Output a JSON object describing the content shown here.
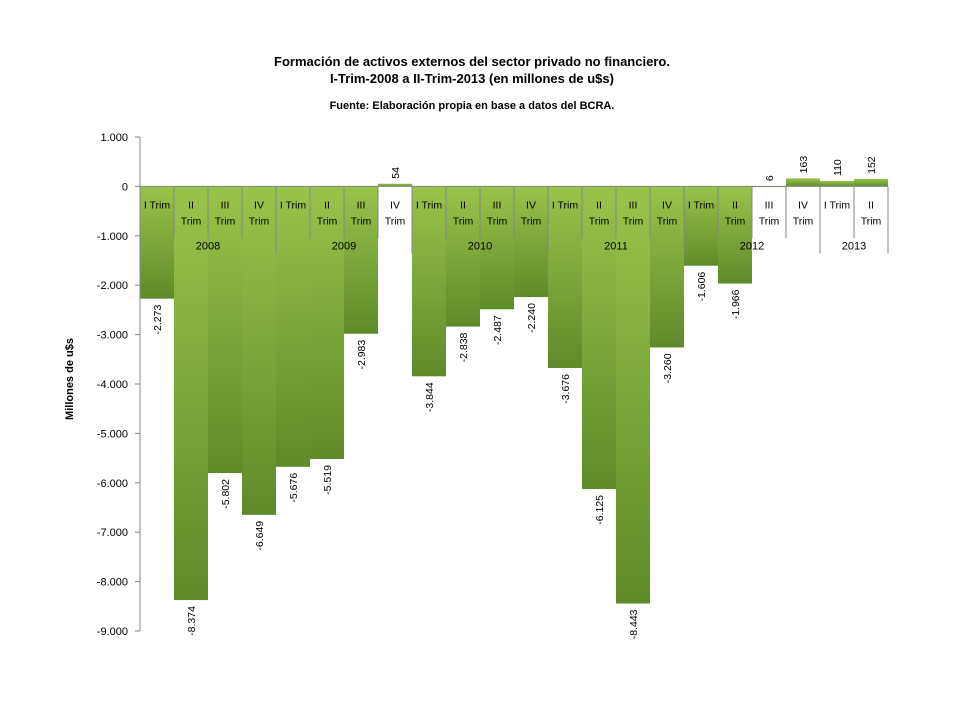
{
  "chart_data": {
    "type": "bar",
    "title": "Formación  de activos externos del sector privado no  financiero.",
    "subtitle": "I-Trim-2008 a II-Trim-2013 (en millones de u$s)",
    "source": "Fuente: Elaboración  propia en base a datos del BCRA.",
    "xlabel": "",
    "ylabel": "Millones de u$s",
    "ylim": [
      -9000,
      1000
    ],
    "yticks": [
      "1.000",
      "0",
      "-1.000",
      "-2.000",
      "-3.000",
      "-4.000",
      "-5.000",
      "-6.000",
      "-7.000",
      "-8.000",
      "-9.000"
    ],
    "categories": [
      {
        "quarter": "I Trim",
        "year": "2008"
      },
      {
        "quarter": "II Trim",
        "year": "2008"
      },
      {
        "quarter": "III Trim",
        "year": "2008"
      },
      {
        "quarter": "IV Trim",
        "year": "2008"
      },
      {
        "quarter": "I Trim",
        "year": "2009"
      },
      {
        "quarter": "II Trim",
        "year": "2009"
      },
      {
        "quarter": "III Trim",
        "year": "2009"
      },
      {
        "quarter": "IV Trim",
        "year": "2009"
      },
      {
        "quarter": "I Trim",
        "year": "2010"
      },
      {
        "quarter": "II Trim",
        "year": "2010"
      },
      {
        "quarter": "III Trim",
        "year": "2010"
      },
      {
        "quarter": "IV Trim",
        "year": "2010"
      },
      {
        "quarter": "I Trim",
        "year": "2011"
      },
      {
        "quarter": "II Trim",
        "year": "2011"
      },
      {
        "quarter": "III Trim",
        "year": "2011"
      },
      {
        "quarter": "IV Trim",
        "year": "2011"
      },
      {
        "quarter": "I Trim",
        "year": "2012"
      },
      {
        "quarter": "II Trim",
        "year": "2012"
      },
      {
        "quarter": "III Trim",
        "year": "2012"
      },
      {
        "quarter": "IV Trim",
        "year": "2012"
      },
      {
        "quarter": "I Trim",
        "year": "2013"
      },
      {
        "quarter": "II Trim",
        "year": "2013"
      }
    ],
    "years": [
      "2008",
      "2009",
      "2010",
      "2011",
      "2012",
      "2013"
    ],
    "values": [
      -2273,
      -8374,
      -5802,
      -6649,
      -5676,
      -5519,
      -2983,
      54,
      -3844,
      -2838,
      -2487,
      -2240,
      -3676,
      -6125,
      -8443,
      -3260,
      -1606,
      -1966,
      6,
      163,
      110,
      152
    ],
    "value_labels": [
      "-2.273",
      "-8.374",
      "-5.802",
      "-6.649",
      "-5.676",
      "-5.519",
      "-2.983",
      "54",
      "-3.844",
      "-2.838",
      "-2.487",
      "-2.240",
      "-3.676",
      "-6.125",
      "-8.443",
      "-3.260",
      "-1.606",
      "-1.966",
      "6",
      "163",
      "110",
      "152"
    ],
    "colors": {
      "bar_light": "#98c44a",
      "bar_dark": "#5f8a2a",
      "axis": "#868686"
    }
  }
}
